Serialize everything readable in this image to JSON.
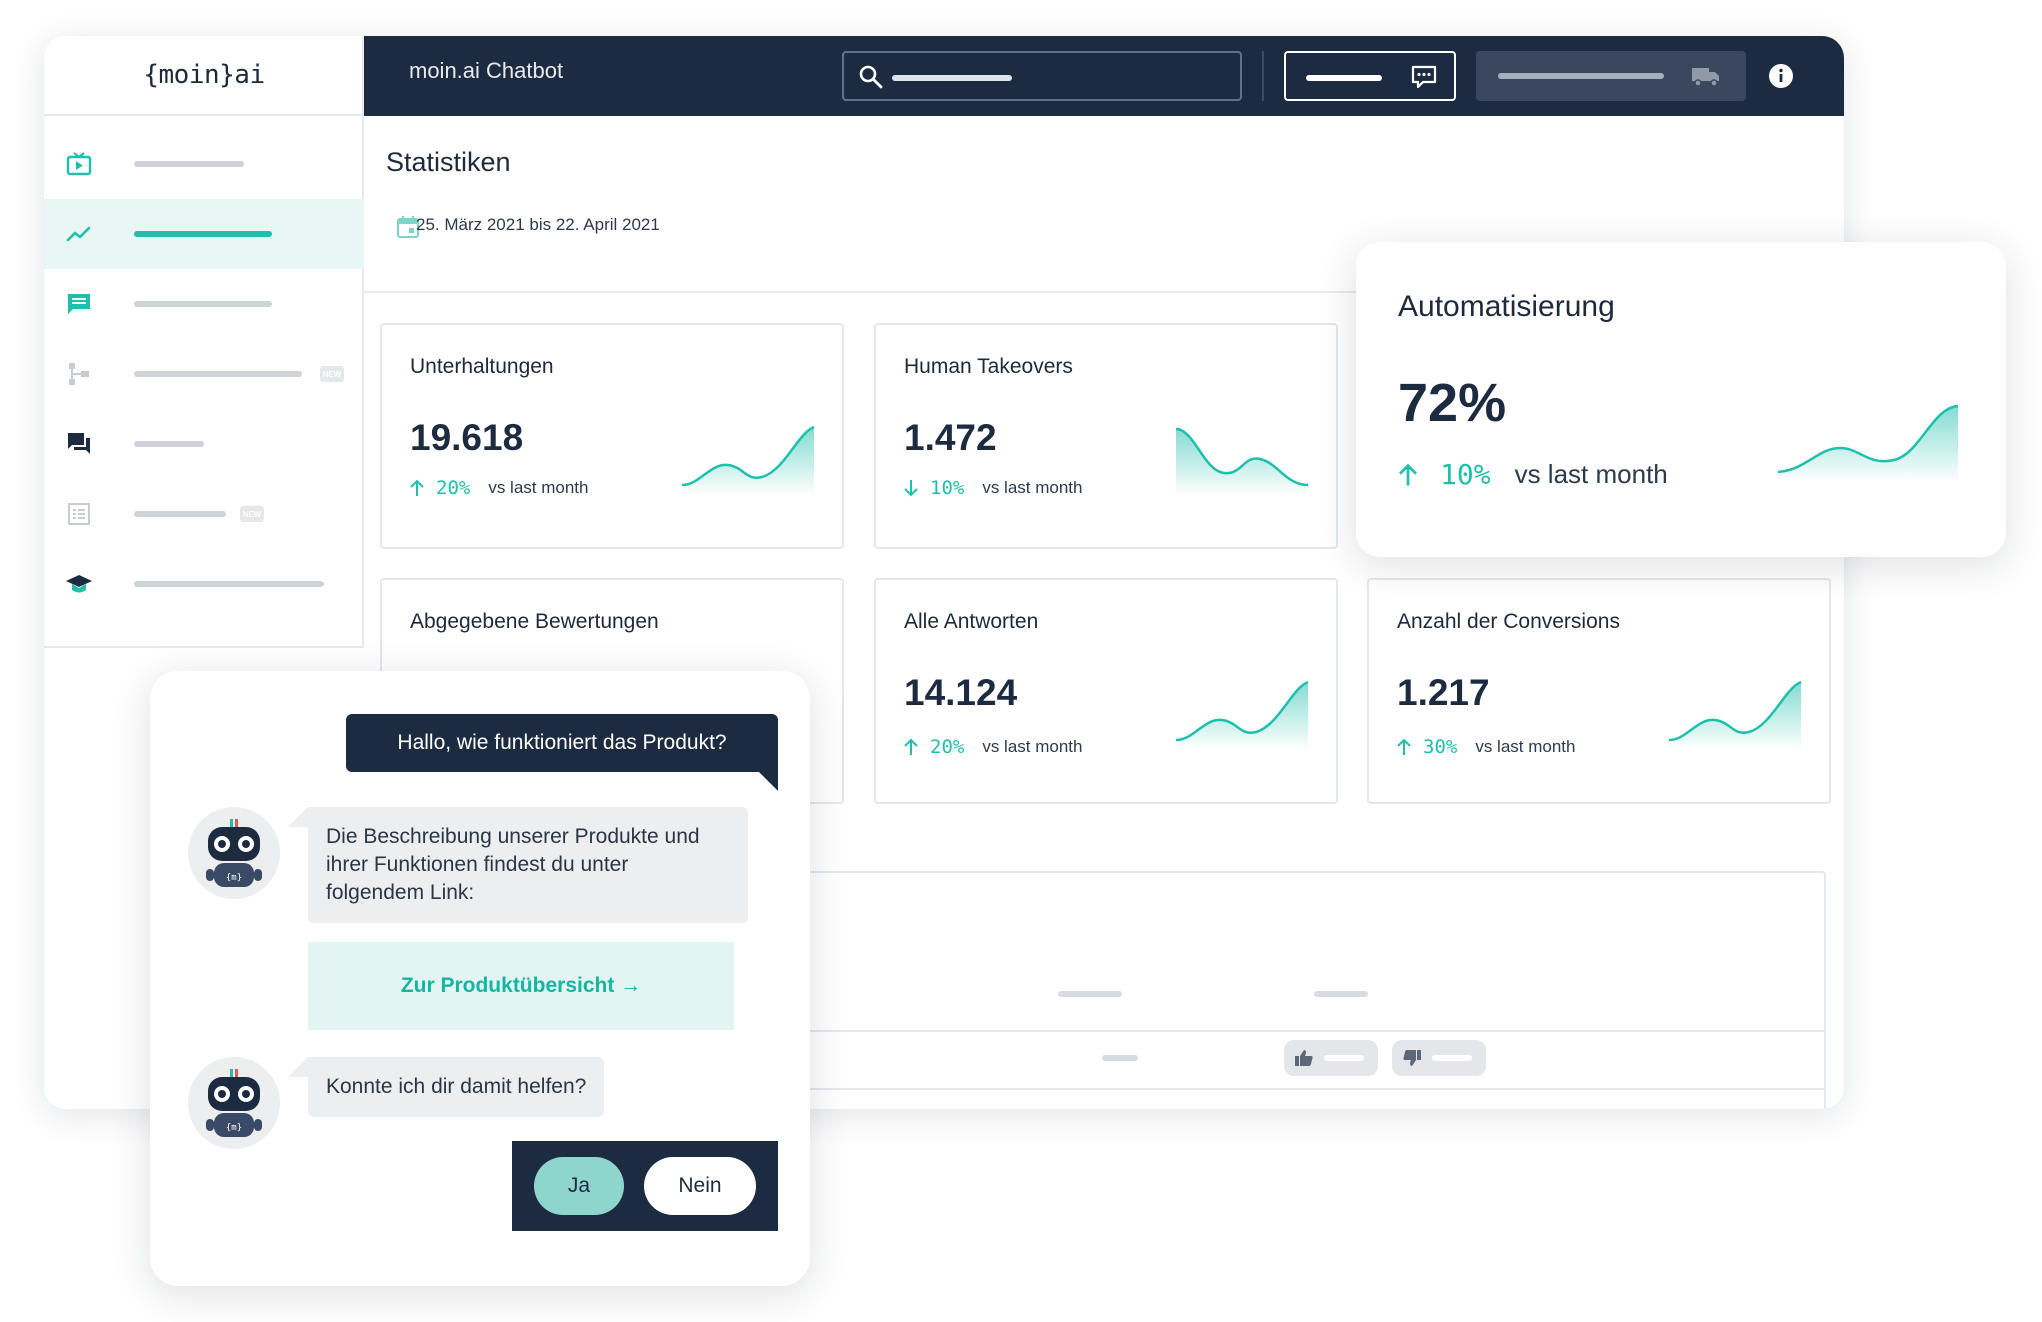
{
  "header": {
    "logo": "{moin}ai",
    "app_title": "moin.ai Chatbot",
    "icons": [
      "search-icon",
      "chat-bubble-icon",
      "truck-icon",
      "info-icon"
    ]
  },
  "sidebar": {
    "items": [
      {
        "name": "video",
        "icon": "tv-play-icon",
        "active": false
      },
      {
        "name": "statistics",
        "icon": "trend-line-icon",
        "active": true
      },
      {
        "name": "messages",
        "icon": "message-icon",
        "active": false
      },
      {
        "name": "flows",
        "icon": "flow-icon",
        "active": false,
        "badge": "NEW"
      },
      {
        "name": "conversations",
        "icon": "chat-icon",
        "active": false
      },
      {
        "name": "forms",
        "icon": "form-list-icon",
        "active": false,
        "badge": "NEW"
      },
      {
        "name": "academy",
        "icon": "graduation-cap-icon",
        "active": false
      }
    ]
  },
  "page": {
    "title": "Statistiken",
    "date_range": "25. März 2021 bis 22. April 2021"
  },
  "cards": [
    {
      "title": "Unterhaltungen",
      "value": "19.618",
      "direction": "up",
      "delta": "20%",
      "label": "vs last month"
    },
    {
      "title": "Human Takeovers",
      "value": "1.472",
      "direction": "down",
      "delta": "10%",
      "label": "vs last month"
    },
    {
      "title": "Abgegebene Bewertungen"
    },
    {
      "title": "Alle Antworten",
      "value": "14.124",
      "direction": "up",
      "delta": "20%",
      "label": "vs last month"
    },
    {
      "title": "Anzahl der Conversions",
      "value": "1.217",
      "direction": "up",
      "delta": "30%",
      "label": "vs last month"
    }
  ],
  "automation": {
    "title": "Automatisierung",
    "value": "72%",
    "direction": "up",
    "delta": "10%",
    "label": "vs last month"
  },
  "chat": {
    "user_message": "Hallo, wie funktioniert das Produkt?",
    "bot_message_1": "Die Beschreibung unserer Produkte und ihrer Funktionen findest du unter folgendem Link:",
    "link_label": "Zur Produktübersicht →",
    "bot_message_2": "Konnte ich dir damit helfen?",
    "answer_yes": "Ja",
    "answer_no": "Nein",
    "avatar_label": "{m}"
  },
  "colors": {
    "navy": "#1d2b41",
    "accent": "#1ebfac",
    "accent_light": "#e3f5f2"
  }
}
